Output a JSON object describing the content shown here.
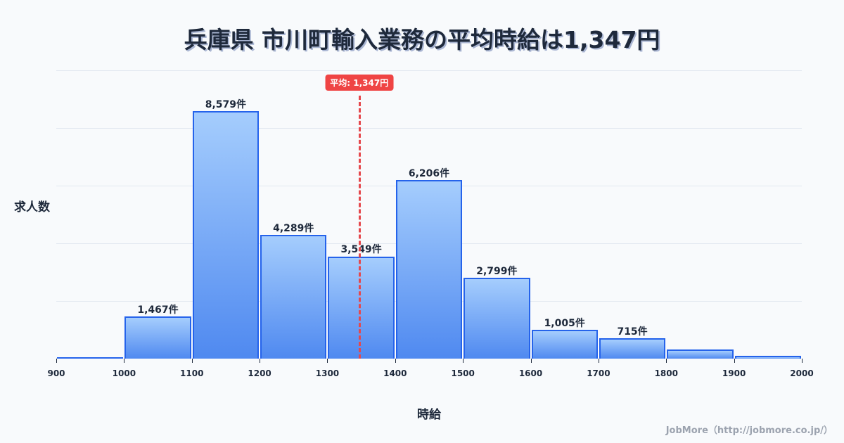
{
  "title": "兵庫県 市川町輸入業務の平均時給は1,347円",
  "ylabel": "求人数",
  "xlabel": "時給",
  "credit": "JobMore（http://jobmore.co.jp/）",
  "average": {
    "value": 1347,
    "label": "平均: 1,347円",
    "color": "#ef4444"
  },
  "colors": {
    "bar_border": "#2563eb",
    "bar_top": "#a5cdfd",
    "bar_bottom": "#4f89f0",
    "background": "#f8fafc"
  },
  "chart_data": {
    "type": "bar",
    "title": "兵庫県 市川町輸入業務の平均時給は1,347円",
    "xlabel": "時給",
    "ylabel": "求人数",
    "categories": [
      "900-1000",
      "1000-1100",
      "1100-1200",
      "1200-1300",
      "1300-1400",
      "1400-1500",
      "1500-1600",
      "1600-1700",
      "1700-1800",
      "1800-1900",
      "1900-2000"
    ],
    "bins": [
      [
        900,
        1000
      ],
      [
        1000,
        1100
      ],
      [
        1100,
        1200
      ],
      [
        1200,
        1300
      ],
      [
        1300,
        1400
      ],
      [
        1400,
        1500
      ],
      [
        1500,
        1600
      ],
      [
        1600,
        1700
      ],
      [
        1700,
        1800
      ],
      [
        1800,
        1900
      ],
      [
        1900,
        2000
      ]
    ],
    "values": [
      30,
      1467,
      8579,
      4289,
      3549,
      6206,
      2799,
      1005,
      715,
      315,
      100
    ],
    "labels": [
      "",
      "1,467件",
      "8,579件",
      "4,289件",
      "3,549件",
      "6,206件",
      "2,799件",
      "1,005件",
      "715件",
      "",
      ""
    ],
    "xticks": [
      900,
      1000,
      1100,
      1200,
      1300,
      1400,
      1500,
      1600,
      1700,
      1800,
      1900,
      2000
    ],
    "xlim": [
      900,
      2000
    ],
    "ylim": [
      0,
      10000
    ],
    "grid": true,
    "annotations": [
      {
        "type": "vline",
        "x": 1347,
        "label": "平均: 1,347円"
      }
    ]
  }
}
